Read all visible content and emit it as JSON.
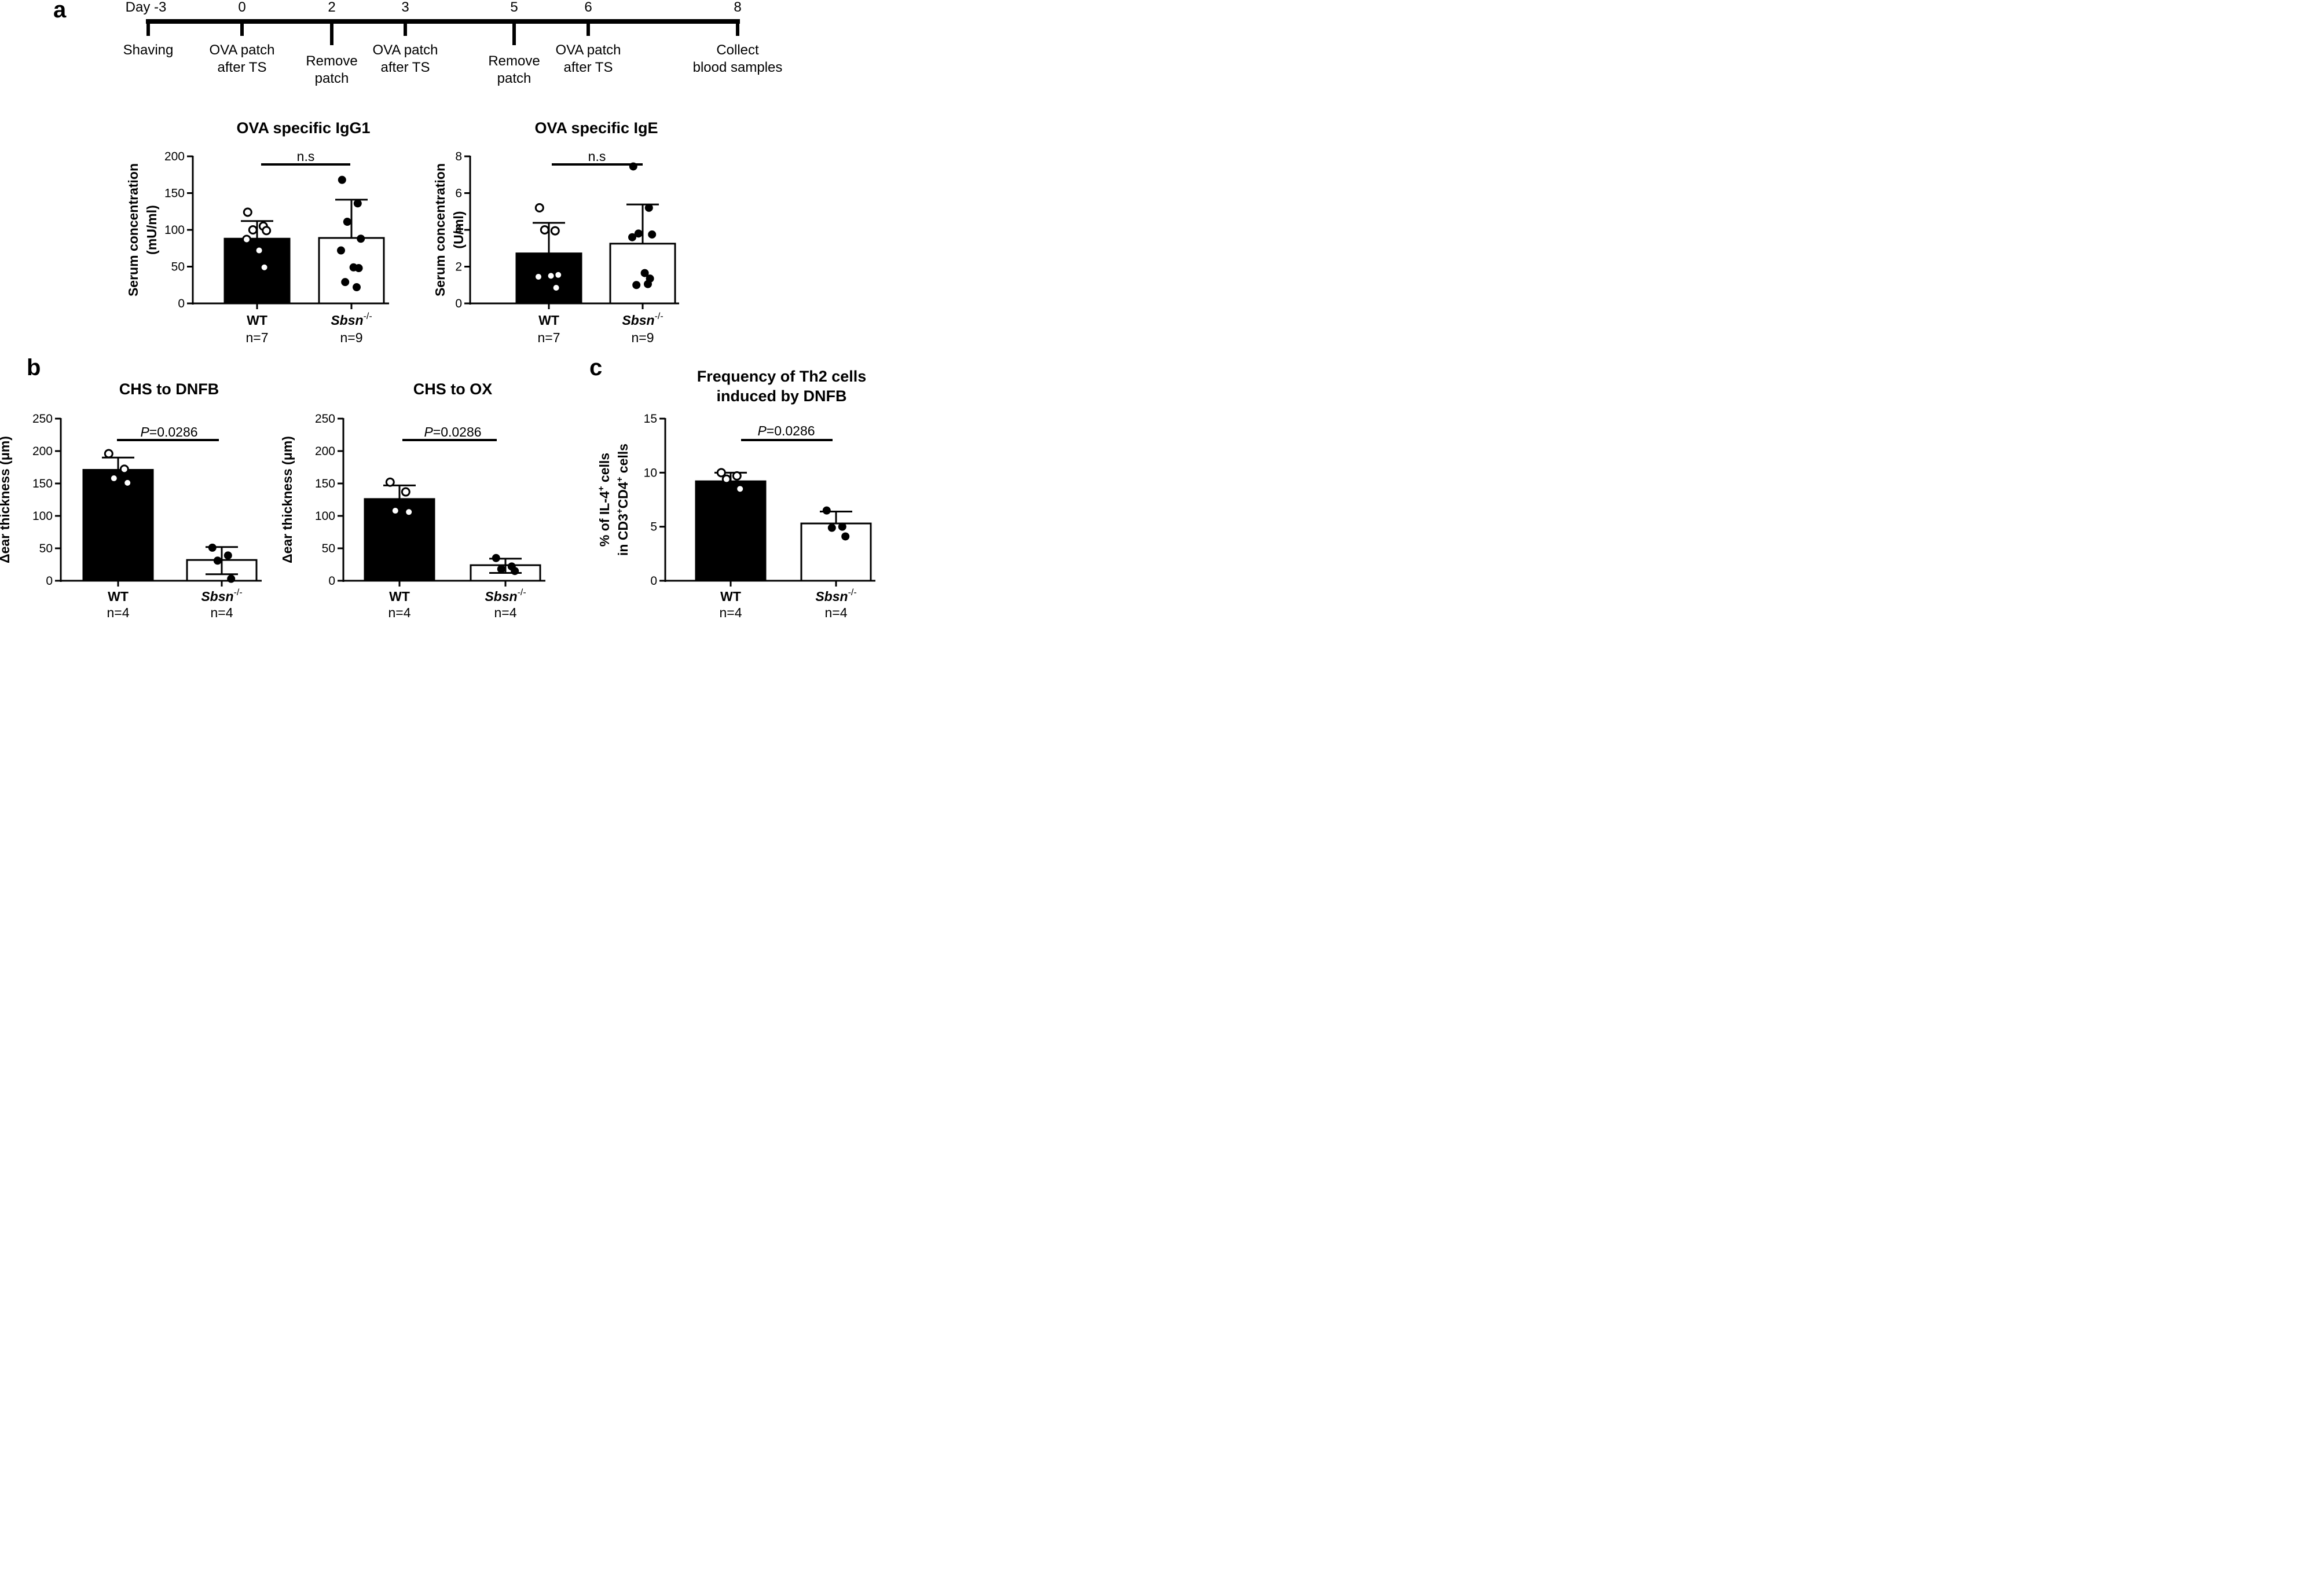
{
  "panels": {
    "a": "a",
    "b": "b",
    "c": "c"
  },
  "timeline": {
    "days": [
      {
        "day": "Day -3",
        "label_lines": [
          "Shaving"
        ]
      },
      {
        "day": "0",
        "label_lines": [
          "OVA patch",
          "after TS"
        ]
      },
      {
        "day": "2",
        "label_lines": [
          "Remove",
          "patch"
        ]
      },
      {
        "day": "3",
        "label_lines": [
          "OVA patch",
          "after TS"
        ]
      },
      {
        "day": "5",
        "label_lines": [
          "Remove",
          "patch"
        ]
      },
      {
        "day": "6",
        "label_lines": [
          "OVA patch",
          "after TS"
        ]
      },
      {
        "day": "8",
        "label_lines": [
          "Collect",
          "blood samples"
        ]
      }
    ]
  },
  "chart_data": [
    {
      "type": "bar",
      "title": "OVA specific IgG1",
      "ylabel_lines": [
        "Serum concentration",
        "(mU/ml)"
      ],
      "ylim": [
        0,
        200
      ],
      "yticks": [
        "0",
        "50",
        "100",
        "150",
        "200"
      ],
      "categories": [
        "WT",
        "Sbsn"
      ],
      "category_superscript": [
        "",
        "-/-"
      ],
      "category_italic": [
        false,
        true
      ],
      "n_labels": [
        "n=7",
        "n=9"
      ],
      "bar_fill": [
        "#000000",
        "#ffffff"
      ],
      "values": [
        88,
        89
      ],
      "error_upper": [
        112,
        141
      ],
      "points": [
        [
          124,
          105,
          100,
          99,
          87,
          72,
          49
        ],
        [
          168,
          136,
          111,
          88,
          72,
          49,
          48,
          29,
          22
        ]
      ],
      "significance": "n.s",
      "sig_italic_prefix": ""
    },
    {
      "type": "bar",
      "title": "OVA specific IgE",
      "ylabel_lines": [
        "Serum concentration",
        "(U/ml)"
      ],
      "ylim": [
        0,
        8
      ],
      "yticks": [
        "0",
        "2",
        "4",
        "6",
        "8"
      ],
      "categories": [
        "WT",
        "Sbsn"
      ],
      "category_superscript": [
        "",
        "-/-"
      ],
      "category_italic": [
        false,
        true
      ],
      "n_labels": [
        "n=7",
        "n=9"
      ],
      "bar_fill": [
        "#000000",
        "#ffffff"
      ],
      "values": [
        2.72,
        3.25
      ],
      "error_upper": [
        4.38,
        5.38
      ],
      "points": [
        [
          5.2,
          3.95,
          4.0,
          1.55,
          1.45,
          1.5,
          0.85
        ],
        [
          7.45,
          5.2,
          3.8,
          3.75,
          3.6,
          1.65,
          1.35,
          1.0,
          1.05
        ]
      ],
      "significance": "n.s",
      "sig_italic_prefix": ""
    },
    {
      "type": "bar",
      "title": "CHS to DNFB",
      "ylabel_lines": [
        "Δear thickness (μm)"
      ],
      "ylim": [
        0,
        250
      ],
      "yticks": [
        "0",
        "50",
        "100",
        "150",
        "200",
        "250"
      ],
      "categories": [
        "WT",
        "Sbsn"
      ],
      "category_superscript": [
        "",
        "-/-"
      ],
      "category_italic": [
        false,
        true
      ],
      "n_labels": [
        "n=4",
        "n=4"
      ],
      "bar_fill": [
        "#000000",
        "#ffffff"
      ],
      "values": [
        171,
        32
      ],
      "error_upper": [
        190,
        52
      ],
      "error_lower": [
        171,
        10
      ],
      "points": [
        [
          196,
          172,
          158,
          151
        ],
        [
          51,
          39,
          31,
          3
        ]
      ],
      "significance": "=0.0286",
      "sig_italic_prefix": "P"
    },
    {
      "type": "bar",
      "title": "CHS to OX",
      "ylabel_lines": [
        "Δear thickness (μm)"
      ],
      "ylim": [
        0,
        250
      ],
      "yticks": [
        "0",
        "50",
        "100",
        "150",
        "200",
        "250"
      ],
      "categories": [
        "WT",
        "Sbsn"
      ],
      "category_superscript": [
        "",
        "-/-"
      ],
      "category_italic": [
        false,
        true
      ],
      "n_labels": [
        "n=4",
        "n=4"
      ],
      "bar_fill": [
        "#000000",
        "#ffffff"
      ],
      "values": [
        126,
        24
      ],
      "error_upper": [
        147,
        34
      ],
      "error_lower": [
        126,
        12
      ],
      "points": [
        [
          152,
          137,
          108,
          106
        ],
        [
          35,
          22,
          18,
          15
        ]
      ],
      "significance": "=0.0286",
      "sig_italic_prefix": "P"
    },
    {
      "type": "bar",
      "title_lines": [
        "Frequency of Th2 cells",
        "induced by DNFB"
      ],
      "ylabel_lines": [
        "% of IL-4 cells",
        "in CD3 CD4 cells"
      ],
      "ylim": [
        0,
        15
      ],
      "yticks": [
        "0",
        "5",
        "10",
        "15"
      ],
      "categories": [
        "WT",
        "Sbsn"
      ],
      "category_superscript": [
        "",
        "-/-"
      ],
      "category_italic": [
        false,
        true
      ],
      "n_labels": [
        "n=4",
        "n=4"
      ],
      "bar_fill": [
        "#000000",
        "#ffffff"
      ],
      "values": [
        9.2,
        5.3
      ],
      "error_upper": [
        10.0,
        6.4
      ],
      "error_lower": [
        9.2,
        5.3
      ],
      "points": [
        [
          10.0,
          9.7,
          9.4,
          8.5
        ],
        [
          6.5,
          5.0,
          4.9,
          4.1
        ]
      ],
      "significance": "=0.0286",
      "sig_italic_prefix": "P"
    }
  ]
}
